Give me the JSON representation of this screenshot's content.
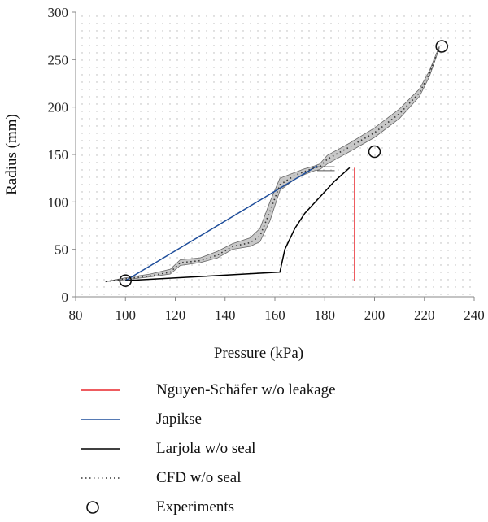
{
  "chart_data": {
    "type": "line",
    "xlabel": "Pressure (kPa)",
    "ylabel": "Radius (mm)",
    "xlim": [
      80,
      240
    ],
    "ylim": [
      0,
      300
    ],
    "xticks": [
      "80",
      "100",
      "120",
      "140",
      "160",
      "180",
      "200",
      "220",
      "240"
    ],
    "yticks": [
      "0",
      "50",
      "100",
      "150",
      "200",
      "250",
      "300"
    ],
    "grid": "dotted",
    "legend_position": "bottom",
    "series": [
      {
        "name": "Nguyen-Schäfer w/o leakage",
        "style": "solid",
        "color": "#e8262b",
        "x": [
          192,
          192
        ],
        "y": [
          17,
          136
        ]
      },
      {
        "name": "Japikse",
        "style": "solid",
        "color": "#1f4e9b",
        "x": [
          100,
          177
        ],
        "y": [
          17,
          138
        ]
      },
      {
        "name": "Larjola w/o seal",
        "style": "solid",
        "color": "#000000",
        "x": [
          100,
          162,
          164,
          168,
          172,
          178,
          184,
          190
        ],
        "y": [
          17,
          26,
          50,
          72,
          88,
          105,
          122,
          136
        ]
      },
      {
        "name": "CFD w/o seal",
        "style": "dotted",
        "color": "#333333",
        "x": [
          92,
          100,
          110,
          118,
          122,
          130,
          137,
          143,
          150,
          154,
          158,
          162,
          168,
          172,
          176,
          178,
          181,
          190,
          200,
          210,
          218,
          222,
          226
        ],
        "y": [
          16,
          19,
          22,
          26,
          36,
          38,
          44,
          53,
          57,
          64,
          90,
          118,
          128,
          132,
          136,
          137,
          145,
          158,
          173,
          193,
          215,
          235,
          263
        ]
      },
      {
        "name": "Experiments",
        "style": "markers",
        "marker": "open-circle",
        "x": [
          100,
          200,
          227
        ],
        "y": [
          17,
          153,
          264
        ]
      }
    ],
    "band": {
      "name": "CFD w/o seal range",
      "color": "#c8c8c8",
      "x": [
        92,
        100,
        110,
        118,
        122,
        130,
        137,
        143,
        150,
        154,
        158,
        162,
        168,
        172,
        176,
        178,
        181,
        190,
        200,
        210,
        218,
        222,
        226
      ],
      "lower": [
        16,
        18,
        21,
        24,
        33,
        36,
        41,
        50,
        53,
        58,
        80,
        112,
        124,
        129,
        133,
        134,
        140,
        153,
        168,
        188,
        211,
        232,
        262
      ],
      "upper": [
        16,
        20,
        24,
        29,
        39,
        41,
        48,
        56,
        62,
        72,
        100,
        125,
        131,
        135,
        138,
        140,
        149,
        162,
        178,
        198,
        219,
        238,
        264
      ]
    },
    "note_lines": [
      {
        "x": [
          177,
          184
        ],
        "y": [
          137,
          137
        ]
      },
      {
        "x": [
          177,
          184
        ],
        "y": [
          133,
          133
        ]
      }
    ]
  }
}
